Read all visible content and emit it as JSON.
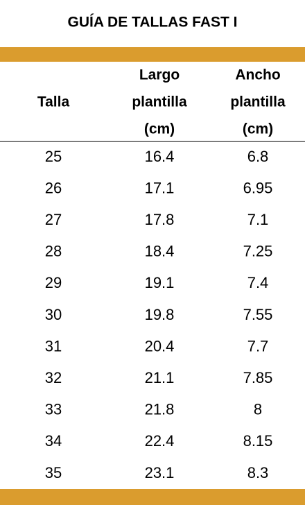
{
  "title": "GUÍA DE TALLAS FAST I",
  "table": {
    "headers": [
      [
        "Talla"
      ],
      [
        "Largo",
        "plantilla",
        "(cm)"
      ],
      [
        "Ancho",
        "plantilla",
        "(cm)"
      ]
    ],
    "rows": [
      [
        "25",
        "16.4",
        "6.8"
      ],
      [
        "26",
        "17.1",
        "6.95"
      ],
      [
        "27",
        "17.8",
        "7.1"
      ],
      [
        "28",
        "18.4",
        "7.25"
      ],
      [
        "29",
        "19.1",
        "7.4"
      ],
      [
        "30",
        "19.8",
        "7.55"
      ],
      [
        "31",
        "20.4",
        "7.7"
      ],
      [
        "32",
        "21.1",
        "7.85"
      ],
      [
        "33",
        "21.8",
        "8"
      ],
      [
        "34",
        "22.4",
        "8.15"
      ],
      [
        "35",
        "23.1",
        "8.3"
      ]
    ]
  }
}
